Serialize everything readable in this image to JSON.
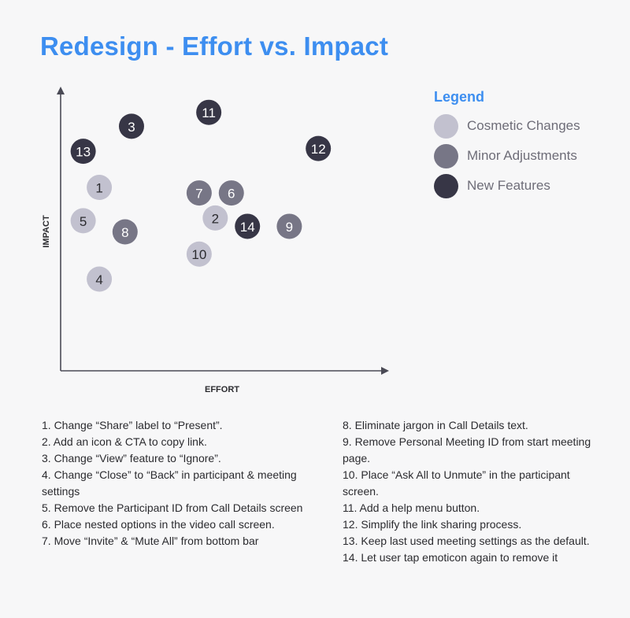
{
  "title": "Redesign - Effort vs. Impact",
  "legend": {
    "title": "Legend",
    "items": [
      {
        "label": "Cosmetic Changes",
        "color": "#c2c1cf"
      },
      {
        "label": "Minor Adjustments",
        "color": "#777686"
      },
      {
        "label": "New Features",
        "color": "#373646"
      }
    ]
  },
  "chart_data": {
    "type": "scatter",
    "title": "Redesign - Effort vs. Impact",
    "xlabel": "EFFORT",
    "ylabel": "IMPACT",
    "grid": false,
    "legend_position": "top-right",
    "categories": [
      "Cosmetic Changes",
      "Minor Adjustments",
      "New Features"
    ],
    "points": [
      {
        "label": "1",
        "x": 12,
        "y": 66,
        "category": "Cosmetic Changes"
      },
      {
        "label": "2",
        "x": 48,
        "y": 55,
        "category": "Cosmetic Changes"
      },
      {
        "label": "3",
        "x": 22,
        "y": 88,
        "category": "New Features"
      },
      {
        "label": "4",
        "x": 12,
        "y": 33,
        "category": "Cosmetic Changes"
      },
      {
        "label": "5",
        "x": 7,
        "y": 54,
        "category": "Cosmetic Changes"
      },
      {
        "label": "6",
        "x": 53,
        "y": 64,
        "category": "Minor Adjustments"
      },
      {
        "label": "7",
        "x": 43,
        "y": 64,
        "category": "Minor Adjustments"
      },
      {
        "label": "8",
        "x": 20,
        "y": 50,
        "category": "Minor Adjustments"
      },
      {
        "label": "9",
        "x": 71,
        "y": 52,
        "category": "Minor Adjustments"
      },
      {
        "label": "10",
        "x": 43,
        "y": 42,
        "category": "Cosmetic Changes"
      },
      {
        "label": "11",
        "x": 46,
        "y": 93,
        "category": "New Features"
      },
      {
        "label": "12",
        "x": 80,
        "y": 80,
        "category": "New Features"
      },
      {
        "label": "13",
        "x": 7,
        "y": 79,
        "category": "New Features"
      },
      {
        "label": "14",
        "x": 58,
        "y": 52,
        "category": "New Features"
      }
    ]
  },
  "notes": {
    "left": [
      "1. Change “Share” label to “Present”.",
      "2. Add an icon & CTA to copy link.",
      "3. Change “View” feature to “Ignore”.",
      "4. Change “Close” to “Back” in participant & meeting settings",
      "5. Remove the Participant ID from Call Details screen",
      "6. Place nested options in the video call screen.",
      "7. Move “Invite” & “Mute All” from bottom bar"
    ],
    "right": [
      "8. Eliminate jargon in Call Details text.",
      "9. Remove Personal Meeting ID from start meeting page.",
      "10. Place “Ask All to Unmute” in the participant screen.",
      "11. Add a help menu button.",
      "12. Simplify the link sharing process.",
      "13. Keep last used meeting settings as the default.",
      "14. Let user tap emoticon again to remove it"
    ]
  }
}
